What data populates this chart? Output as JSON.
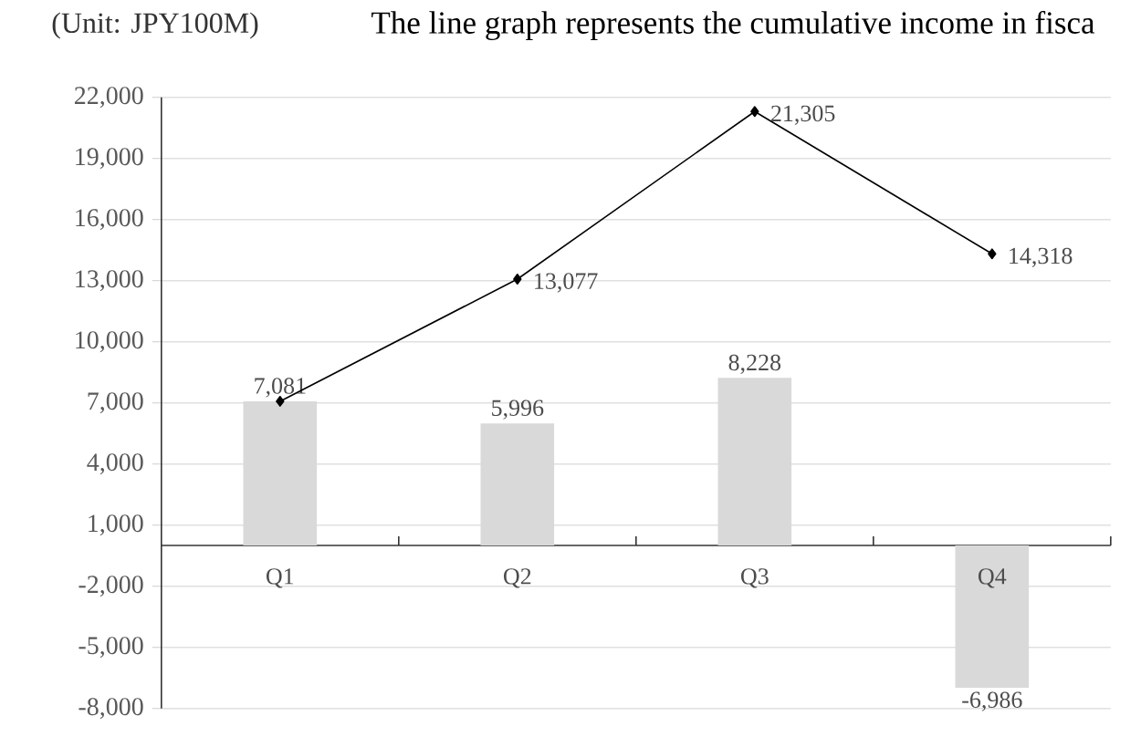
{
  "chart_data": {
    "type": "bar",
    "ylabel": "(Unit: JPY100M)",
    "annotations": [
      "The line graph represents the cumulative income in fisca"
    ],
    "categories": [
      "Q1",
      "Q2",
      "Q3",
      "Q4"
    ],
    "series": [
      {
        "color": "#d9d9d9",
        "values": [
          7081,
          5996,
          8228,
          -6986
        ],
        "value_labels": [
          "7,081",
          "5,996",
          "8,228",
          "-6,986"
        ]
      },
      {
        "type": "line",
        "color": "#000000",
        "marker": "diamond",
        "values": [
          7081,
          13077,
          21305,
          14318
        ],
        "value_labels": [
          null,
          "13,077",
          "21,305",
          "14,318"
        ]
      }
    ],
    "ylim": [
      -8000,
      22000
    ],
    "yticks": [
      {
        "value": -8000,
        "label": "-8,000"
      },
      {
        "value": -5000,
        "label": "-5,000"
      },
      {
        "value": -2000,
        "label": "-2,000"
      },
      {
        "value": 1000,
        "label": "1,000"
      },
      {
        "value": 4000,
        "label": "4,000"
      },
      {
        "value": 7000,
        "label": "7,000"
      },
      {
        "value": 10000,
        "label": "10,000"
      },
      {
        "value": 13000,
        "label": "13,000"
      },
      {
        "value": 16000,
        "label": "16,000"
      },
      {
        "value": 19000,
        "label": "19,000"
      },
      {
        "value": 22000,
        "label": "22,000"
      }
    ],
    "grid": "y"
  }
}
